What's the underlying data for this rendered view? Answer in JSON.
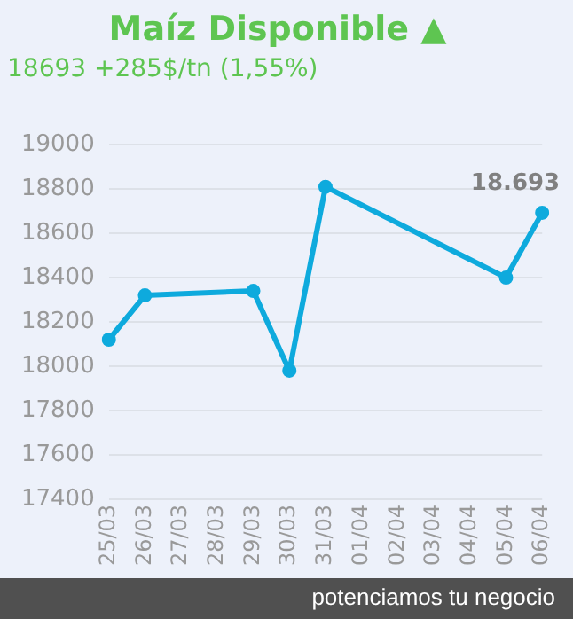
{
  "chart_data": {
    "type": "line",
    "title": "Maíz Disponible ▲",
    "subtitle": "18693 +285$/tn (1,55%)",
    "categories": [
      "25/03",
      "26/03",
      "27/03",
      "28/03",
      "29/03",
      "30/03",
      "31/03",
      "01/04",
      "02/04",
      "03/04",
      "04/04",
      "05/04",
      "06/04"
    ],
    "series": [
      {
        "color": "#0eaadd",
        "values": [
          18120,
          18320,
          null,
          null,
          18340,
          17980,
          18810,
          null,
          null,
          null,
          null,
          18400,
          18693
        ],
        "value_labels": [
          null,
          null,
          null,
          null,
          null,
          null,
          null,
          null,
          null,
          null,
          null,
          null,
          "18.693"
        ]
      }
    ],
    "ylim": [
      17400,
      19000
    ],
    "yticks": [
      17400,
      17600,
      17800,
      18000,
      18200,
      18400,
      18600,
      18800,
      19000
    ],
    "grid": "y",
    "legend": false,
    "marker": "circle",
    "line_style": "solid",
    "annotations": [
      "potenciamos tu negocio"
    ]
  }
}
